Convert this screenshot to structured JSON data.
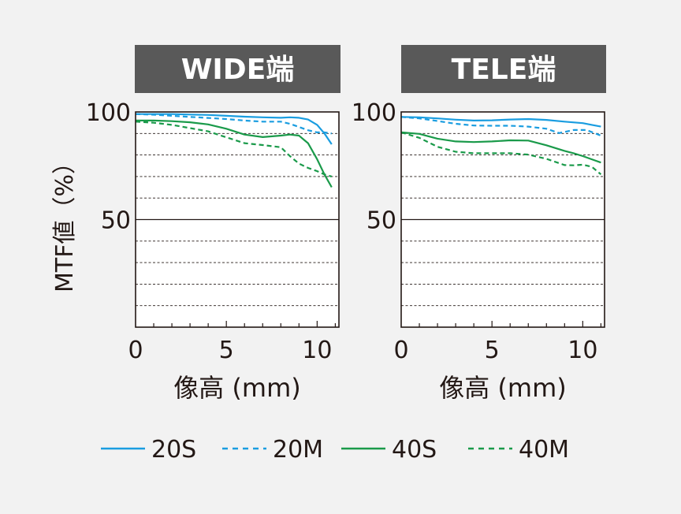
{
  "ylabel": "MTF値（%）",
  "colors": {
    "background": "#f2f2f2",
    "title_bg": "#595959",
    "title_text": "#ffffff",
    "axis": "#231815",
    "grid": "#231815",
    "blue": "#1a9de0",
    "green": "#1a9a4a"
  },
  "legend": [
    {
      "label": "20S",
      "color": "#1a9de0",
      "dash": false
    },
    {
      "label": "20M",
      "color": "#1a9de0",
      "dash": true
    },
    {
      "label": "40S",
      "color": "#1a9a4a",
      "dash": false
    },
    {
      "label": "40M",
      "color": "#1a9a4a",
      "dash": true
    }
  ],
  "chart_data": [
    {
      "type": "line",
      "title": "WIDE端",
      "xlabel": "像高 (mm)",
      "ylabel": "MTF値（%）",
      "xlim": [
        0,
        11.2
      ],
      "ylim": [
        0,
        100
      ],
      "xticks": [
        0,
        5,
        10
      ],
      "yticks": [
        50,
        100
      ],
      "grid": "dashed horizontal every 10%",
      "series": [
        {
          "name": "20S",
          "x": [
            0,
            1,
            2,
            3,
            4,
            5,
            6,
            7,
            8,
            8.5,
            9,
            9.5,
            10,
            10.4,
            10.8
          ],
          "y": [
            99,
            99,
            99,
            98.8,
            98.6,
            98.2,
            97.8,
            97.5,
            97.3,
            97.5,
            97.3,
            96.5,
            94,
            90,
            85
          ]
        },
        {
          "name": "20M",
          "x": [
            0,
            1,
            2,
            3,
            4,
            5,
            6,
            7,
            8,
            8.5,
            9,
            9.5,
            10,
            10.4,
            10.8
          ],
          "y": [
            99,
            98.7,
            98.2,
            97.7,
            97.2,
            96.7,
            96,
            95.5,
            95.5,
            94.5,
            93,
            91.5,
            90.5,
            90.5,
            90
          ]
        },
        {
          "name": "40S",
          "x": [
            0,
            1,
            2,
            3,
            4,
            5,
            6,
            7,
            8,
            8.5,
            9,
            9.5,
            10,
            10.4,
            10.8
          ],
          "y": [
            96,
            96,
            95.7,
            95.2,
            94.2,
            92.2,
            89.5,
            88.3,
            89,
            89.5,
            89,
            85.5,
            78,
            71,
            65
          ]
        },
        {
          "name": "40M",
          "x": [
            0,
            1,
            2,
            3,
            4,
            5,
            6,
            7,
            8,
            8.5,
            9,
            9.5,
            10,
            10.4,
            10.8
          ],
          "y": [
            95.5,
            95,
            94,
            92.5,
            91,
            88.2,
            85.5,
            84.6,
            83.6,
            79.5,
            76,
            74,
            72.5,
            71,
            70
          ]
        }
      ]
    },
    {
      "type": "line",
      "title": "TELE端",
      "xlabel": "像高 (mm)",
      "ylabel": "MTF値（%）",
      "xlim": [
        0,
        11.2
      ],
      "ylim": [
        0,
        100
      ],
      "xticks": [
        0,
        5,
        10
      ],
      "yticks": [
        50,
        100
      ],
      "grid": "dashed horizontal every 10%",
      "series": [
        {
          "name": "20S",
          "x": [
            0,
            1,
            2,
            3,
            4,
            5,
            6,
            7,
            8,
            9,
            10,
            10.5,
            11
          ],
          "y": [
            97.7,
            97.5,
            97,
            96.4,
            96,
            96.1,
            96.5,
            96.7,
            96.3,
            95.5,
            94.8,
            94,
            93.2
          ]
        },
        {
          "name": "20M",
          "x": [
            0,
            1,
            2,
            3,
            4,
            5,
            6,
            7,
            8,
            8.7,
            9.5,
            10.2,
            11
          ],
          "y": [
            97.7,
            97,
            95.8,
            94.5,
            93.7,
            93.6,
            93.6,
            93.2,
            92.2,
            90.2,
            91.6,
            91.6,
            89
          ]
        },
        {
          "name": "40S",
          "x": [
            0,
            1,
            2,
            3,
            4,
            5,
            6,
            7,
            8,
            9,
            9.5,
            10,
            10.5,
            11
          ],
          "y": [
            90.5,
            89.8,
            87.6,
            86.3,
            86,
            86.3,
            86.8,
            86.7,
            84.5,
            81.9,
            80.8,
            79.5,
            78,
            76.5
          ]
        },
        {
          "name": "40M",
          "x": [
            0,
            1,
            2,
            3,
            4,
            5,
            6,
            7,
            8,
            9,
            9.5,
            10,
            10.5,
            11
          ],
          "y": [
            90.5,
            88,
            83.8,
            81.5,
            80.8,
            80.8,
            80.8,
            80.2,
            78.2,
            75.3,
            75.2,
            75.5,
            74.5,
            71
          ]
        }
      ]
    }
  ]
}
